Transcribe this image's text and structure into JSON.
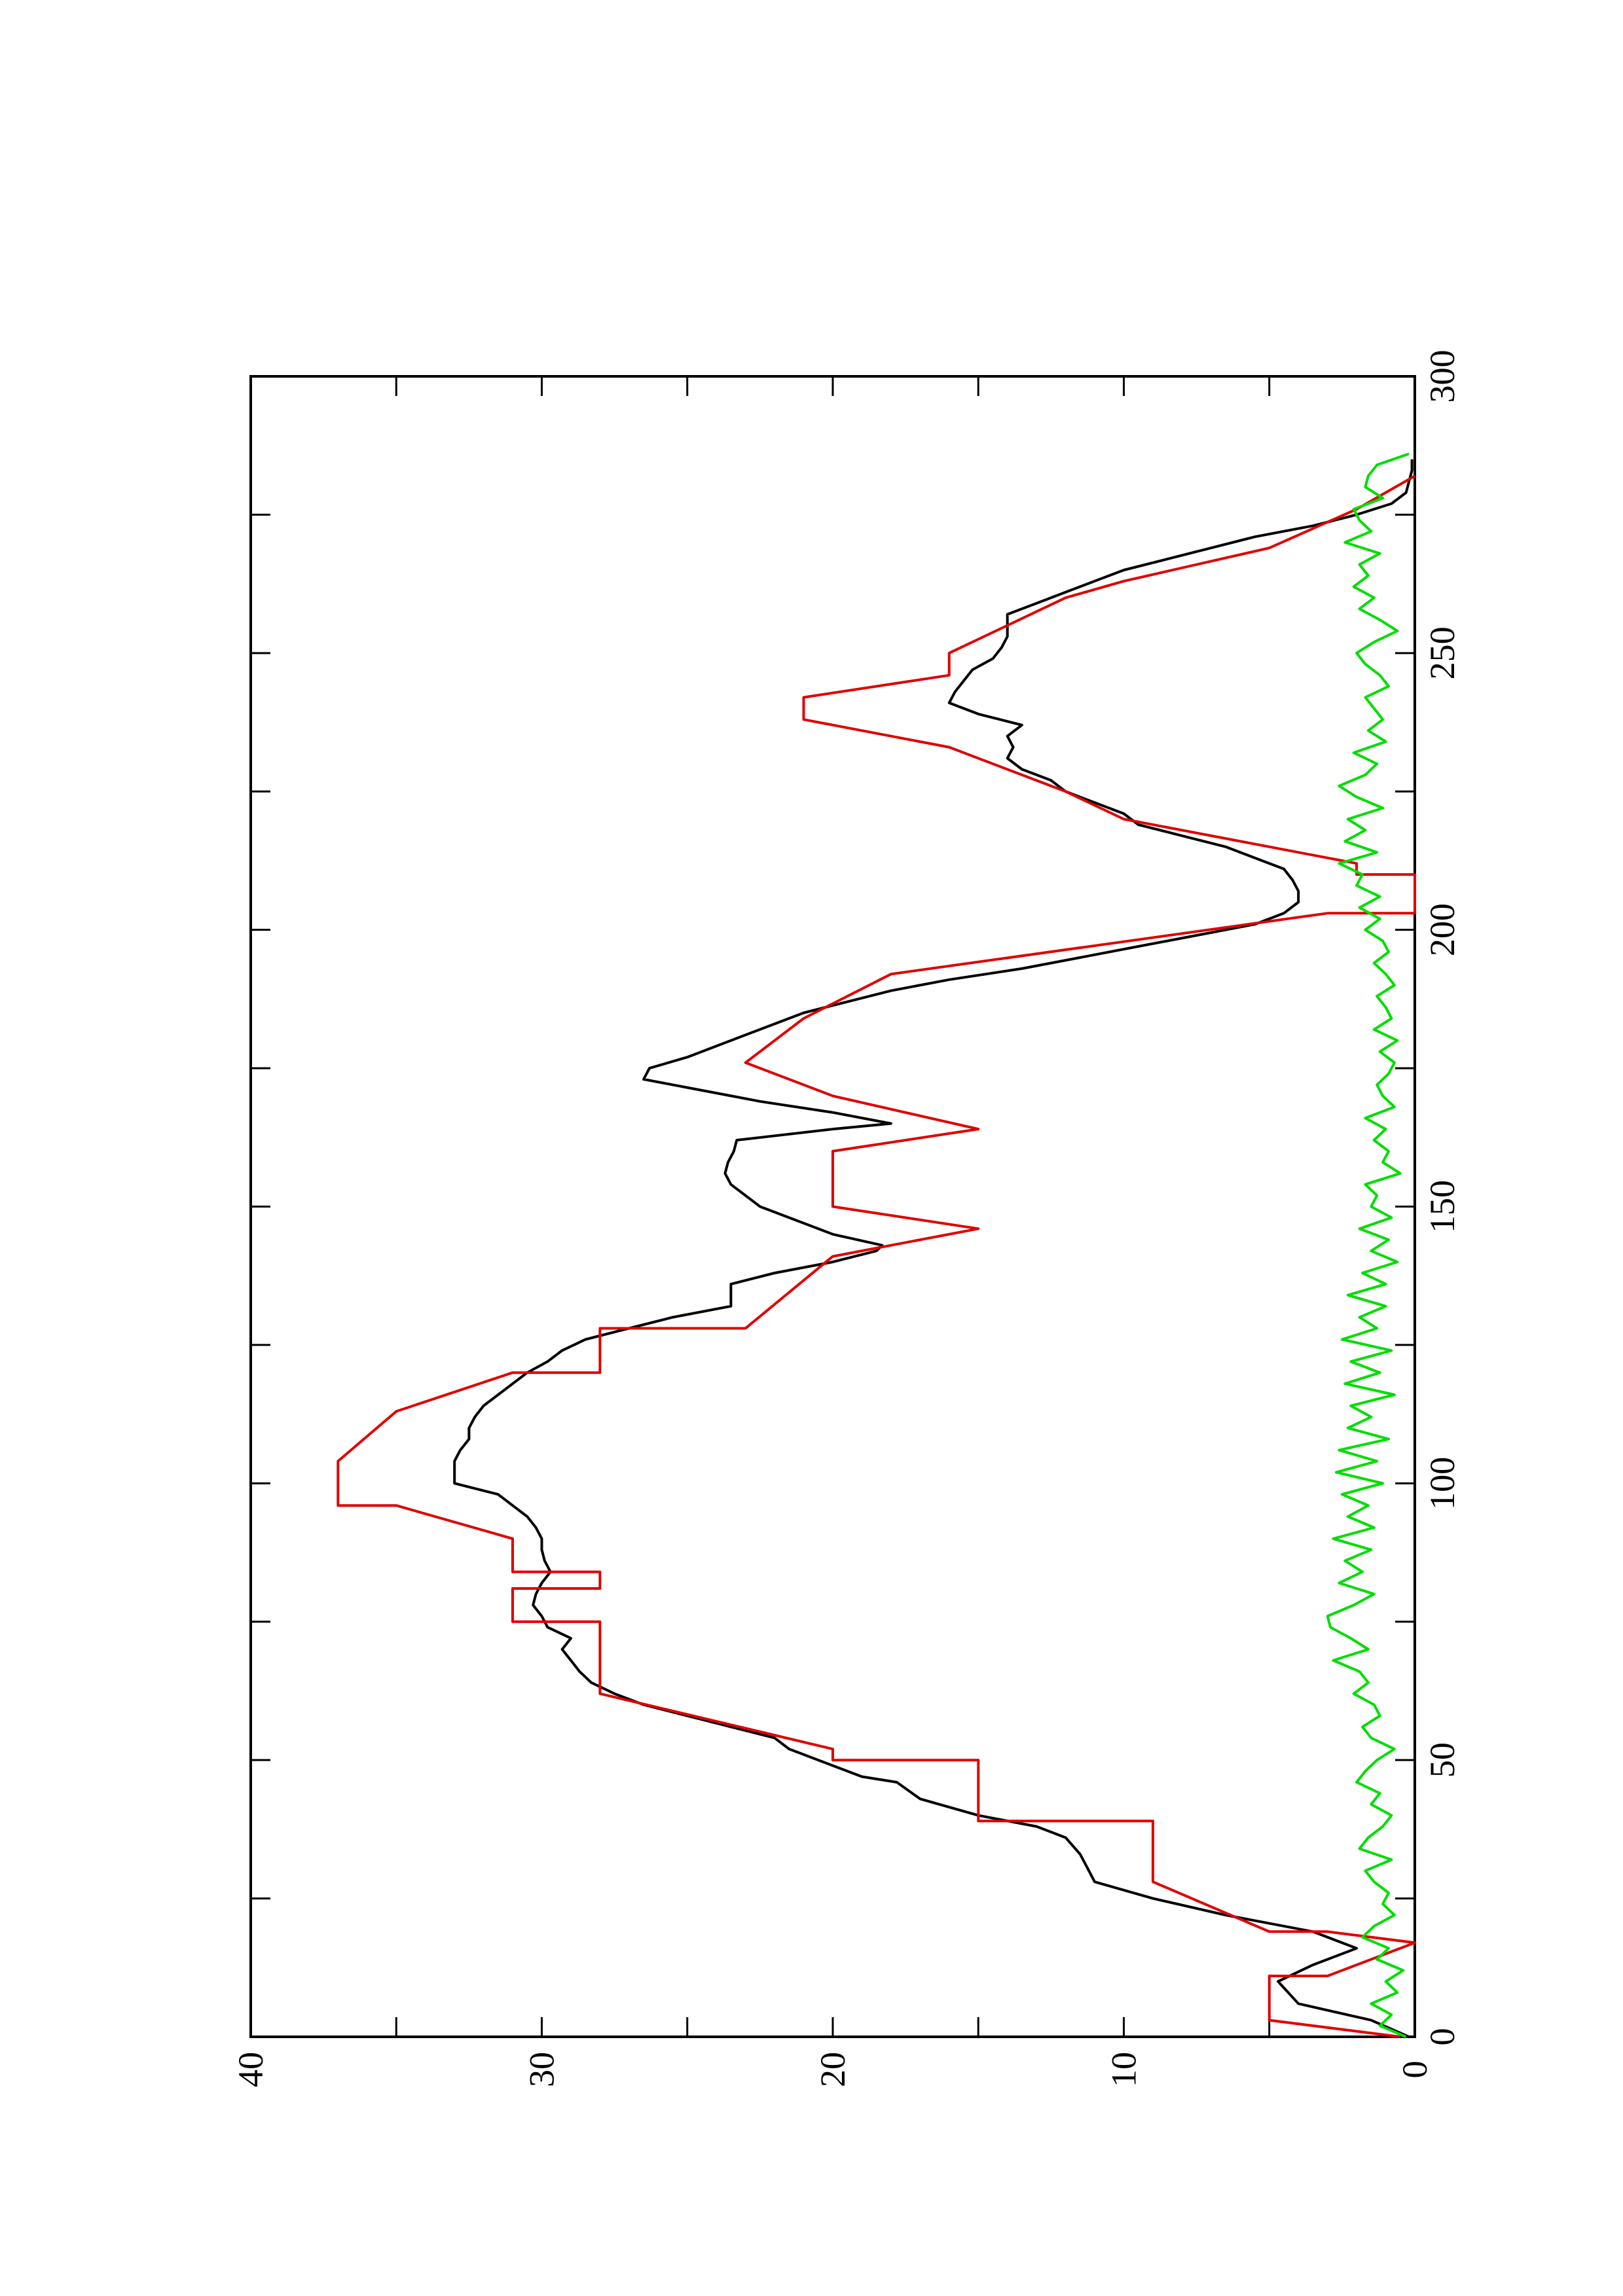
{
  "chart_data": {
    "type": "line",
    "orientation": "rotated-90-ccw",
    "title": "",
    "xlabel": "",
    "ylabel": "",
    "xlim": [
      0,
      300
    ],
    "ylim": [
      0,
      40
    ],
    "x_ticks": [
      0,
      50,
      100,
      150,
      200,
      250,
      300
    ],
    "x_tick_labels": [
      "0",
      "50",
      "100",
      "150",
      "200",
      "250",
      "300"
    ],
    "y_ticks": [
      0,
      10,
      20,
      30,
      40
    ],
    "y_tick_labels": [
      "0",
      "10",
      "20",
      "30",
      "40"
    ],
    "grid": false,
    "legend": "none",
    "series": [
      {
        "color": "#000000",
        "style": "smooth",
        "x": [
          0,
          3,
          6,
          10,
          13,
          16,
          19,
          22,
          25,
          28,
          30,
          33,
          36,
          38,
          40,
          43,
          46,
          47,
          49,
          52,
          54,
          56,
          58,
          60,
          62,
          64,
          66,
          68,
          70,
          72,
          74,
          76,
          78,
          80,
          82,
          84,
          86,
          88,
          90,
          92,
          94,
          96,
          98,
          100,
          102,
          104,
          106,
          108,
          110,
          112,
          114,
          116,
          118,
          120,
          122,
          124,
          126,
          128,
          130,
          132,
          134,
          136,
          138,
          140,
          142,
          143,
          145,
          148,
          150,
          152,
          154,
          156,
          158,
          160,
          162,
          164,
          165,
          167,
          169,
          171,
          173,
          175,
          177,
          179,
          181,
          183,
          185,
          187,
          189,
          191,
          193,
          195,
          197,
          199,
          201,
          203,
          205,
          207,
          209,
          211,
          213,
          215,
          217,
          219,
          221,
          223,
          225,
          227,
          229,
          231,
          233,
          235,
          237,
          239,
          241,
          243,
          245,
          247,
          249,
          251,
          253,
          255,
          257,
          259,
          261,
          263,
          265,
          267,
          269,
          271,
          273,
          275,
          277,
          279,
          281,
          283,
          285
        ],
        "values": [
          0.2,
          1.5,
          4.0,
          4.7,
          3.5,
          2.0,
          3.5,
          6.5,
          9.0,
          11.0,
          11.2,
          11.5,
          12.0,
          13.0,
          15.0,
          17.0,
          17.8,
          19.0,
          20.0,
          21.5,
          22.0,
          23.5,
          25.0,
          26.5,
          27.5,
          28.3,
          28.7,
          29.0,
          29.3,
          29.0,
          29.8,
          30.0,
          30.3,
          30.2,
          30.0,
          29.7,
          29.9,
          30.0,
          30.0,
          30.2,
          30.5,
          31.0,
          31.5,
          33.0,
          33.0,
          33.0,
          32.8,
          32.5,
          32.5,
          32.3,
          32.0,
          31.5,
          31.0,
          30.5,
          29.8,
          29.3,
          28.5,
          27.0,
          25.5,
          23.5,
          23.5,
          23.5,
          22.0,
          20.0,
          18.5,
          18.3,
          20.0,
          21.5,
          22.5,
          23.0,
          23.5,
          23.7,
          23.6,
          23.4,
          23.3,
          20.0,
          18.0,
          20.0,
          22.5,
          24.5,
          26.5,
          26.3,
          25.0,
          24.0,
          23.0,
          22.0,
          21.0,
          19.5,
          18.0,
          16.0,
          13.5,
          11.5,
          9.5,
          7.5,
          5.5,
          4.5,
          4.0,
          4.0,
          4.2,
          4.5,
          5.5,
          6.5,
          8.0,
          9.5,
          10.0,
          11.0,
          12.0,
          12.5,
          13.5,
          14.0,
          13.8,
          14.0,
          13.5,
          15.0,
          16.0,
          15.8,
          15.5,
          15.2,
          14.5,
          14.2,
          14.0,
          14.0,
          14.0,
          13.0,
          12.0,
          11.0,
          10.0,
          8.5,
          7.0,
          5.5,
          3.5,
          2.0,
          0.8,
          0.3,
          0.2,
          0.1,
          0.1
        ]
      },
      {
        "color": "#e00000",
        "style": "linear",
        "x": [
          0,
          3,
          3,
          11,
          11,
          17,
          17,
          19,
          19,
          28,
          28,
          39,
          39,
          50,
          50,
          52,
          52,
          62,
          62,
          75,
          75,
          81,
          81,
          84,
          84,
          90,
          90,
          96,
          96,
          104,
          104,
          113,
          113,
          120,
          120,
          128,
          128,
          141,
          141,
          146,
          146,
          150,
          150,
          160,
          160,
          164,
          164,
          170,
          170,
          176,
          176,
          184,
          184,
          192,
          192,
          203,
          203,
          210,
          210,
          212,
          212,
          220,
          220,
          225,
          225,
          233,
          233,
          238,
          238,
          242,
          242,
          246,
          246,
          250,
          250,
          260,
          260,
          263,
          263,
          269,
          269,
          276,
          276,
          282
        ],
        "values": [
          0.5,
          5.0,
          5.0,
          5.0,
          3.0,
          0.0,
          0.0,
          3.0,
          5.0,
          9.0,
          9.0,
          9.0,
          15.0,
          15.0,
          20.0,
          20.0,
          20.0,
          28.0,
          28.0,
          28.0,
          31.0,
          31.0,
          28.0,
          28.0,
          31.0,
          31.0,
          31.0,
          35.0,
          37.0,
          37.0,
          37.0,
          35.0,
          35.0,
          31.0,
          28.0,
          28.0,
          23.0,
          20.0,
          20.0,
          15.0,
          15.0,
          20.0,
          20.0,
          20.0,
          20.0,
          15.0,
          15.0,
          20.0,
          20.0,
          23.0,
          23.0,
          21.0,
          21.0,
          18.0,
          18.0,
          3.0,
          0.0,
          0.0,
          2.0,
          2.0,
          2.0,
          10.0,
          10.0,
          12.0,
          12.0,
          16.0,
          16.0,
          21.0,
          21.0,
          21.0,
          21.0,
          16.0,
          16.0,
          16.0,
          16.0,
          12.0,
          12.0,
          10.0,
          10.0,
          5.0,
          5.0,
          2.0,
          2.0,
          0.0
        ]
      },
      {
        "color": "#00dd00",
        "style": "noisy",
        "x": [
          0,
          2,
          4,
          6,
          8,
          10,
          12,
          14,
          16,
          18,
          20,
          22,
          24,
          26,
          28,
          30,
          32,
          34,
          36,
          38,
          40,
          42,
          44,
          46,
          48,
          50,
          52,
          54,
          56,
          58,
          60,
          62,
          64,
          66,
          68,
          70,
          72,
          74,
          76,
          78,
          80,
          82,
          84,
          86,
          88,
          90,
          92,
          94,
          96,
          98,
          100,
          102,
          104,
          106,
          108,
          110,
          112,
          114,
          116,
          118,
          120,
          122,
          124,
          126,
          128,
          130,
          132,
          134,
          136,
          138,
          140,
          142,
          144,
          146,
          148,
          150,
          152,
          154,
          156,
          158,
          160,
          162,
          164,
          166,
          168,
          170,
          172,
          174,
          176,
          178,
          180,
          182,
          184,
          186,
          188,
          190,
          192,
          194,
          196,
          198,
          200,
          202,
          204,
          206,
          208,
          210,
          212,
          214,
          216,
          218,
          220,
          222,
          224,
          226,
          228,
          230,
          232,
          234,
          236,
          238,
          240,
          242,
          244,
          246,
          248,
          250,
          252,
          254,
          256,
          258,
          260,
          262,
          264,
          266,
          268,
          270,
          272,
          274,
          276,
          278,
          280,
          282,
          284,
          286
        ],
        "values": [
          0.3,
          1.2,
          0.8,
          1.5,
          0.6,
          1.0,
          0.4,
          1.3,
          0.9,
          1.8,
          1.4,
          0.7,
          1.1,
          0.9,
          1.4,
          1.7,
          0.8,
          1.9,
          1.6,
          1.1,
          0.8,
          1.5,
          1.2,
          2.0,
          1.7,
          1.3,
          0.7,
          1.5,
          1.8,
          1.2,
          1.4,
          2.1,
          1.6,
          1.9,
          2.8,
          1.6,
          2.2,
          2.9,
          3.0,
          2.1,
          1.4,
          2.6,
          1.8,
          2.4,
          1.5,
          2.8,
          1.4,
          2.3,
          1.6,
          2.5,
          1.1,
          2.7,
          1.3,
          2.6,
          0.9,
          2.3,
          1.5,
          2.2,
          0.7,
          2.4,
          1.2,
          2.2,
          0.8,
          2.5,
          1.3,
          1.9,
          1.0,
          2.3,
          1.0,
          1.8,
          0.6,
          1.5,
          0.9,
          1.9,
          0.8,
          1.5,
          1.3,
          1.7,
          0.5,
          1.1,
          0.9,
          1.4,
          1.0,
          1.7,
          0.7,
          1.1,
          1.3,
          0.9,
          0.7,
          1.2,
          0.6,
          1.4,
          0.8,
          1.0,
          1.3,
          0.7,
          1.0,
          1.4,
          0.9,
          1.1,
          1.7,
          1.2,
          1.9,
          1.2,
          2.0,
          1.8,
          2.6,
          1.3,
          2.4,
          1.7,
          2.3,
          1.1,
          2.0,
          2.6,
          1.7,
          1.3,
          2.1,
          1.0,
          1.6,
          1.1,
          1.4,
          1.7,
          0.9,
          1.2,
          1.7,
          2.0,
          1.4,
          0.6,
          1.2,
          1.9,
          1.4,
          2.1,
          1.6,
          1.9,
          1.2,
          2.4,
          1.5,
          1.9,
          2.1,
          1.1,
          1.7,
          1.6,
          1.3,
          0.2
        ]
      }
    ]
  }
}
